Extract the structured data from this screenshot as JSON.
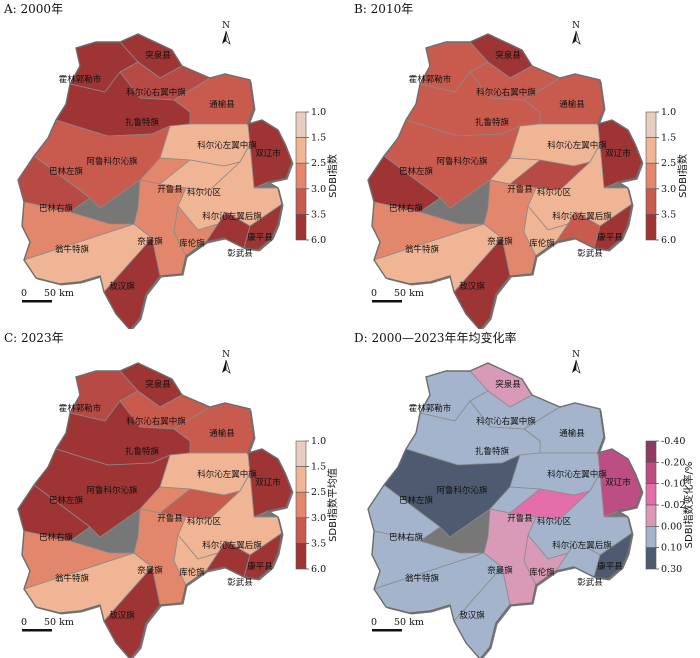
{
  "panels": [
    {
      "id": "A",
      "title": "A: 2000年",
      "legend_key": "sdbi",
      "legend_title": "SDBI指数",
      "fills": {
        "tuquan": "#9e3434",
        "huolinguole": "#9e3434",
        "kezuozhong_you": "#b84a45",
        "tongyu": "#c95a4e",
        "zalute": "#9e3434",
        "alukeerqin": "#c95a4e",
        "balinzuo": "#b84a45",
        "kezuozhong": "#f0b595",
        "shuangliao": "#9e3434",
        "balinyou": "#e2876b",
        "kailu": "#e2876b",
        "keerqin": "#f0b595",
        "kezuohou": "#f0b595",
        "wengniute": "#f0b595",
        "naiman": "#e2876b",
        "kulun": "#e2876b",
        "zhangwu": "#9e3434",
        "kangping": "#9e3434",
        "aohan": "#9e3434"
      }
    },
    {
      "id": "B",
      "title": "B: 2010年",
      "legend_key": "sdbi",
      "legend_title": "SDBI指数",
      "fills": {
        "tuquan": "#9e3434",
        "huolinguole": "#c95a4e",
        "kezuozhong_you": "#c95a4e",
        "tongyu": "#c95a4e",
        "zalute": "#c95a4e",
        "alukeerqin": "#c95a4e",
        "balinzuo": "#9e3434",
        "kezuozhong": "#f0b595",
        "shuangliao": "#9e3434",
        "balinyou": "#e2876b",
        "kailu": "#f0b595",
        "keerqin": "#b84a45",
        "kezuohou": "#f0b595",
        "wengniute": "#f0b595",
        "naiman": "#e2876b",
        "kulun": "#f0b595",
        "zhangwu": "#c95a4e",
        "kangping": "#9e3434",
        "aohan": "#9e3434"
      }
    },
    {
      "id": "C",
      "title": "C: 2023年",
      "legend_key": "sdbi",
      "legend_title": "SDBI指数平均值",
      "fills": {
        "tuquan": "#9e3434",
        "huolinguole": "#b84a45",
        "kezuozhong_you": "#c95a4e",
        "tongyu": "#c95a4e",
        "zalute": "#9e3434",
        "alukeerqin": "#9e3434",
        "balinzuo": "#9e3434",
        "kezuozhong": "#f0b595",
        "shuangliao": "#9e3434",
        "balinyou": "#e2876b",
        "kailu": "#e2876b",
        "keerqin": "#c95a4e",
        "kezuohou": "#f0b595",
        "wengniute": "#f0b595",
        "naiman": "#e2876b",
        "kulun": "#f0b595",
        "zhangwu": "#9e3434",
        "kangping": "#9e3434",
        "aohan": "#9e3434"
      }
    },
    {
      "id": "D",
      "title": "D: 2000—2023年年均变化率",
      "legend_key": "change",
      "legend_title": "SDBI指数变化率/%",
      "fills": {
        "tuquan": "#d99ab7",
        "huolinguole": "#a3b4cc",
        "kezuozhong_you": "#a3b4cc",
        "tongyu": "#a3b4cc",
        "zalute": "#a3b4cc",
        "alukeerqin": "#4d5a70",
        "balinzuo": "#a3b4cc",
        "kezuozhong": "#a3b4cc",
        "shuangliao": "#bd4e84",
        "balinyou": "#a3b4cc",
        "kailu": "#a3b4cc",
        "keerqin": "#e36eaa",
        "kezuohou": "#a3b4cc",
        "wengniute": "#a3b4cc",
        "naiman": "#d99ab7",
        "kulun": "#d99ab7",
        "zhangwu": "#a3b4cc",
        "kangping": "#4d5a70",
        "aohan": "#a3b4cc"
      }
    }
  ],
  "labels": {
    "tuquan": "突泉县",
    "huolinguole": "霍林郭勒市",
    "kezuozhong_you": "科尔沁右翼中旗",
    "tongyu": "通榆县",
    "zalute": "扎鲁特旗",
    "alukeerqin": "阿鲁科尔沁旗",
    "balinzuo": "巴林左旗",
    "kezuozhong": "科尔沁左翼中旗",
    "shuangliao": "双辽市",
    "balinyou": "巴林右旗",
    "kailu": "开鲁县",
    "keerqin": "科尔沁区",
    "kezuohou": "科尔沁左翼后旗",
    "wengniute": "翁牛特旗",
    "naiman": "奈曼旗",
    "kulun": "库伦旗",
    "zhangwu": "彰武县",
    "kangping": "康平县",
    "aohan": "敖汉旗"
  },
  "north_label": "N",
  "scale": {
    "zero": "0",
    "text": "50 km"
  },
  "legends": {
    "sdbi": {
      "ticks": [
        "1.0",
        "1.5",
        "2.5",
        "3.0",
        "3.5",
        "6.0"
      ],
      "colors": [
        "#e8cdbf",
        "#f0b595",
        "#e2876b",
        "#c95a4e",
        "#9e3434"
      ]
    },
    "change": {
      "ticks": [
        "-0.40",
        "-0.20",
        "-0.10",
        "-0.02",
        "0.00",
        "0.10",
        "0.30"
      ],
      "colors": [
        "#8f3a62",
        "#bd4e84",
        "#e36eaa",
        "#d99ab7",
        "#a3b4cc",
        "#4d5a70"
      ]
    }
  }
}
